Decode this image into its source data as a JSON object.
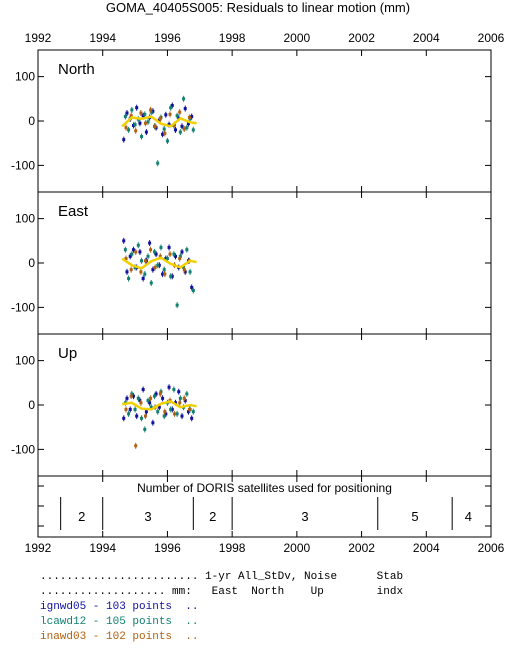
{
  "chart_data": {
    "type": "scatter",
    "title": "GOMA_40405S005: Residuals to linear motion (mm)",
    "xlim": [
      1992,
      2006
    ],
    "x_ticks": [
      "1992",
      "1994",
      "1996",
      "1998",
      "2000",
      "2002",
      "2004",
      "2006"
    ],
    "ylim": [
      -160,
      160
    ],
    "y_ticks": [
      "100",
      "0",
      "-100"
    ],
    "panels": [
      {
        "name": "North",
        "series": [
          {
            "name": "ignwd05",
            "color": "#1010a0",
            "x": [
              1994.65,
              1994.75,
              1994.85,
              1994.95,
              1995.05,
              1995.15,
              1995.25,
              1995.35,
              1995.45,
              1995.55,
              1995.65,
              1995.75,
              1995.85,
              1995.95,
              1996.05,
              1996.15,
              1996.25,
              1996.35,
              1996.45,
              1996.55,
              1996.65,
              1996.75
            ],
            "y": [
              -42,
              18,
              5,
              -10,
              30,
              -5,
              12,
              -25,
              8,
              22,
              -15,
              2,
              -30,
              14,
              -8,
              35,
              -20,
              6,
              -12,
              28,
              -6,
              10
            ]
          },
          {
            "name": "lcawd12",
            "color": "#108070",
            "x": [
              1994.7,
              1994.8,
              1994.9,
              1995.0,
              1995.1,
              1995.2,
              1995.3,
              1995.4,
              1995.5,
              1995.6,
              1995.7,
              1995.8,
              1995.9,
              1996.0,
              1996.1,
              1996.2,
              1996.3,
              1996.4,
              1996.5,
              1996.6,
              1996.7,
              1996.8
            ],
            "y": [
              10,
              -20,
              25,
              -8,
              4,
              -35,
              15,
              -2,
              20,
              -12,
              -95,
              8,
              -18,
              -45,
              30,
              -10,
              12,
              -25,
              50,
              -15,
              5,
              -20
            ]
          },
          {
            "name": "inawd03",
            "color": "#b06010",
            "x": [
              1994.72,
              1994.88,
              1995.02,
              1995.18,
              1995.32,
              1995.48,
              1995.62,
              1995.78,
              1995.92,
              1996.08,
              1996.22,
              1996.38,
              1996.52,
              1996.68
            ],
            "y": [
              -15,
              12,
              -22,
              18,
              -5,
              25,
              -12,
              5,
              -28,
              15,
              -8,
              20,
              -18,
              8
            ]
          }
        ],
        "mean": [
          [
            1994.6,
            -12
          ],
          [
            1994.9,
            8
          ],
          [
            1995.2,
            5
          ],
          [
            1995.5,
            10
          ],
          [
            1995.8,
            -6
          ],
          [
            1996.1,
            -12
          ],
          [
            1996.4,
            6
          ],
          [
            1996.7,
            -3
          ],
          [
            1996.9,
            -5
          ]
        ]
      },
      {
        "name": "East",
        "series": [
          {
            "name": "ignwd05",
            "color": "#1010a0",
            "x": [
              1994.65,
              1994.75,
              1994.85,
              1994.95,
              1995.05,
              1995.15,
              1995.25,
              1995.35,
              1995.45,
              1995.55,
              1995.65,
              1995.75,
              1995.85,
              1995.95,
              1996.05,
              1996.15,
              1996.25,
              1996.35,
              1996.45,
              1996.55,
              1996.65,
              1996.75
            ],
            "y": [
              50,
              -20,
              15,
              30,
              -10,
              25,
              -35,
              5,
              45,
              -15,
              20,
              -5,
              -25,
              10,
              35,
              -30,
              15,
              -10,
              25,
              -20,
              5,
              -55
            ]
          },
          {
            "name": "lcawd12",
            "color": "#108070",
            "x": [
              1994.7,
              1994.8,
              1994.9,
              1995.0,
              1995.1,
              1995.2,
              1995.3,
              1995.4,
              1995.5,
              1995.6,
              1995.7,
              1995.8,
              1995.9,
              1996.0,
              1996.1,
              1996.2,
              1996.3,
              1996.4,
              1996.5,
              1996.6,
              1996.7,
              1996.8
            ],
            "y": [
              30,
              -35,
              20,
              -10,
              40,
              5,
              -25,
              15,
              -45,
              25,
              -5,
              35,
              -15,
              10,
              -30,
              20,
              -95,
              15,
              -10,
              30,
              -20,
              -62
            ]
          },
          {
            "name": "inawd03",
            "color": "#b06010",
            "x": [
              1994.72,
              1994.88,
              1995.02,
              1995.18,
              1995.32,
              1995.48,
              1995.62,
              1995.78,
              1995.92,
              1996.08,
              1996.22,
              1996.38,
              1996.52,
              1996.68
            ],
            "y": [
              10,
              -15,
              25,
              -20,
              5,
              30,
              -10,
              15,
              -25,
              20,
              -5,
              10,
              -15,
              5
            ]
          }
        ],
        "mean": [
          [
            1994.6,
            10
          ],
          [
            1994.9,
            -5
          ],
          [
            1995.2,
            -12
          ],
          [
            1995.5,
            4
          ],
          [
            1995.8,
            12
          ],
          [
            1996.1,
            -2
          ],
          [
            1996.4,
            -10
          ],
          [
            1996.7,
            5
          ],
          [
            1996.9,
            2
          ]
        ]
      },
      {
        "name": "Up",
        "series": [
          {
            "name": "ignwd05",
            "color": "#1010a0",
            "x": [
              1994.65,
              1994.75,
              1994.85,
              1994.95,
              1995.05,
              1995.15,
              1995.25,
              1995.35,
              1995.45,
              1995.55,
              1995.65,
              1995.75,
              1995.85,
              1995.95,
              1996.05,
              1996.15,
              1996.25,
              1996.35,
              1996.45,
              1996.55,
              1996.65,
              1996.75
            ],
            "y": [
              -30,
              15,
              -10,
              20,
              -25,
              10,
              35,
              -15,
              5,
              -40,
              25,
              -5,
              15,
              -20,
              40,
              -10,
              5,
              30,
              -25,
              10,
              -15,
              -30
            ]
          },
          {
            "name": "lcawd12",
            "color": "#108070",
            "x": [
              1994.7,
              1994.8,
              1994.9,
              1995.0,
              1995.1,
              1995.2,
              1995.3,
              1995.4,
              1995.5,
              1995.6,
              1995.7,
              1995.8,
              1995.9,
              1996.0,
              1996.1,
              1996.2,
              1996.3,
              1996.4,
              1996.5,
              1996.6,
              1996.7,
              1996.8
            ],
            "y": [
              5,
              -20,
              25,
              -10,
              15,
              -30,
              -55,
              10,
              -5,
              20,
              -15,
              30,
              -25,
              5,
              -10,
              35,
              -20,
              15,
              -5,
              25,
              -10,
              -15
            ]
          },
          {
            "name": "inawd03",
            "color": "#b06010",
            "x": [
              1994.72,
              1994.88,
              1995.02,
              1995.18,
              1995.32,
              1995.48,
              1995.62,
              1995.78,
              1995.92,
              1996.08,
              1996.22,
              1996.38,
              1996.52,
              1996.68
            ],
            "y": [
              -10,
              20,
              -92,
              5,
              -25,
              15,
              -5,
              25,
              -15,
              10,
              -20,
              5,
              15,
              -10
            ]
          }
        ],
        "mean": [
          [
            1994.6,
            2
          ],
          [
            1994.9,
            5
          ],
          [
            1995.2,
            -8
          ],
          [
            1995.5,
            -10
          ],
          [
            1995.8,
            3
          ],
          [
            1996.1,
            8
          ],
          [
            1996.4,
            -5
          ],
          [
            1996.7,
            0
          ],
          [
            1996.9,
            -3
          ]
        ]
      }
    ],
    "satellites": {
      "title": "Number of DORIS satellites used for positioning",
      "boundaries": [
        1992.7,
        1994.0,
        1996.8,
        1998.0,
        2002.5,
        2004.8
      ],
      "segments": [
        {
          "label": "2",
          "x": 1993.35
        },
        {
          "label": "3",
          "x": 1995.4
        },
        {
          "label": "2",
          "x": 1997.4
        },
        {
          "label": "3",
          "x": 2000.25
        },
        {
          "label": "5",
          "x": 2003.65
        },
        {
          "label": "4",
          "x": 2005.3
        }
      ]
    }
  },
  "legend": {
    "header1": "........................ 1-yr All_StDv, Noise      Stab",
    "header2": "................... mm:   East  North    Up        indx",
    "rows": [
      {
        "text": "ignwd05 - 103 points  ..",
        "color": "#1010a0"
      },
      {
        "text": "lcawd12 - 105 points  ..",
        "color": "#108070"
      },
      {
        "text": "inawd03 - 102 points  ..",
        "color": "#b06010"
      }
    ]
  }
}
